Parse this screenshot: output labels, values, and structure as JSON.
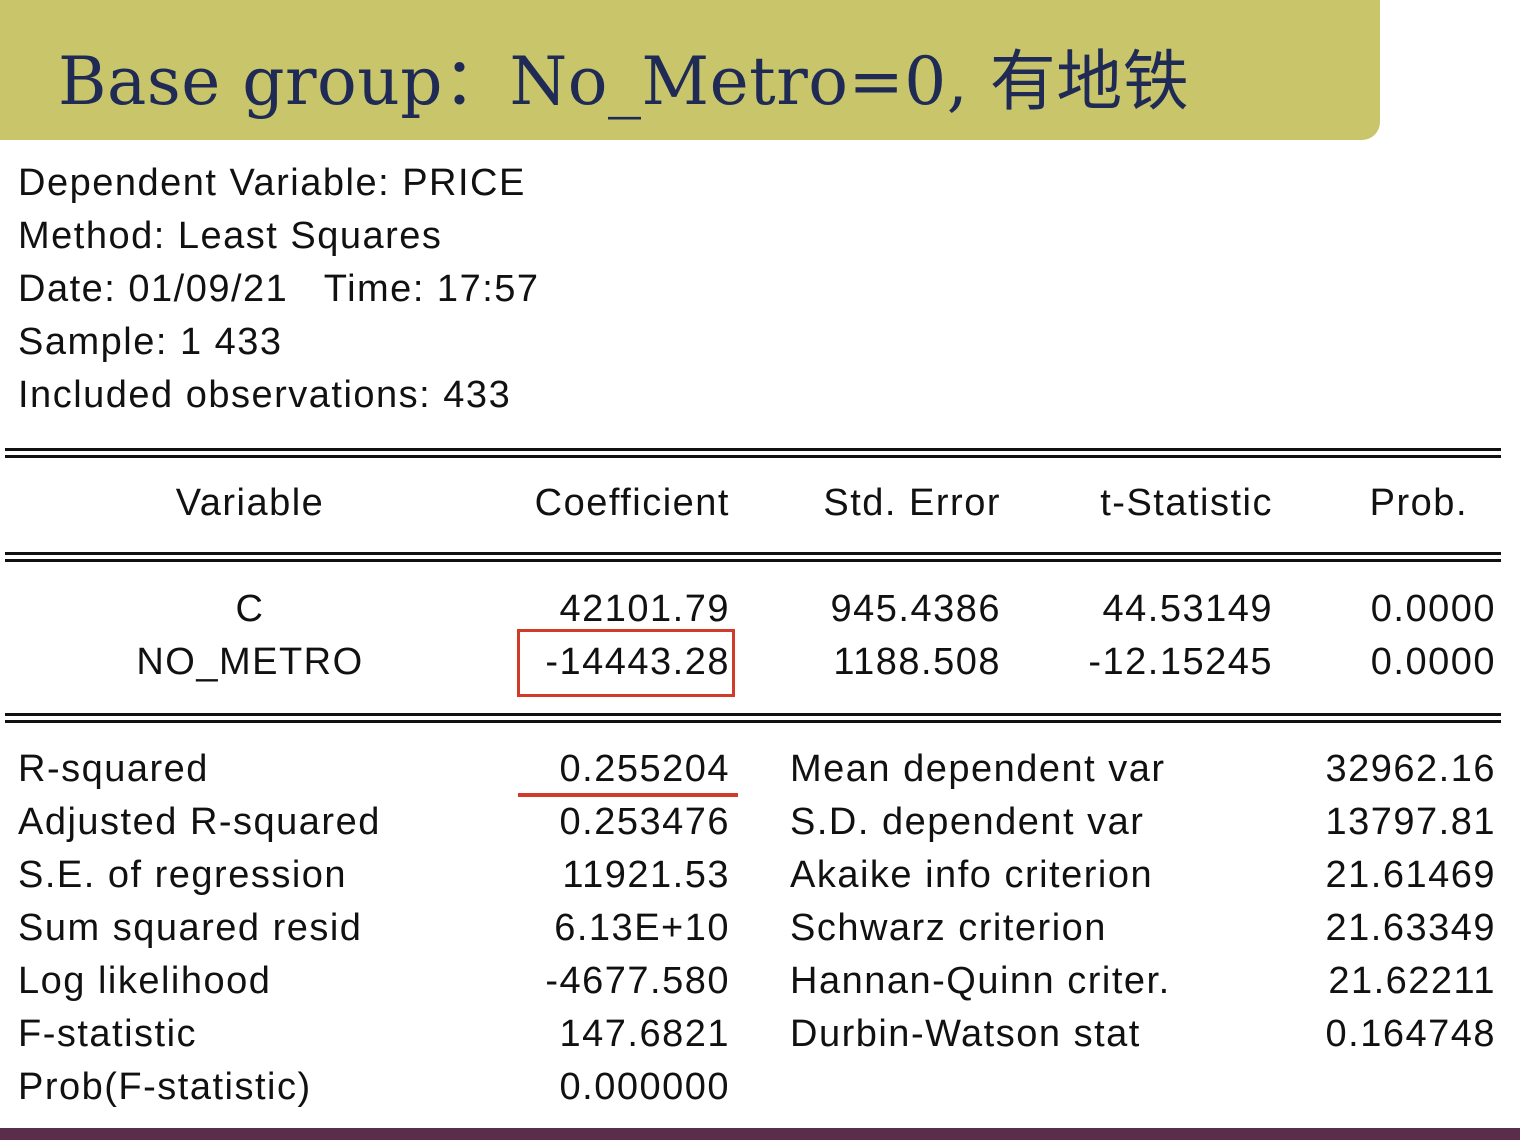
{
  "title": "Base group：No_Metro=0, 有地铁",
  "meta": {
    "dependent": "Dependent Variable: PRICE",
    "method": "Method: Least Squares",
    "date": "Date: 01/09/21   Time: 17:57",
    "sample": "Sample: 1 433",
    "observations": "Included observations: 433"
  },
  "table": {
    "headers": [
      "Variable",
      "Coefficient",
      "Std. Error",
      "t-Statistic",
      "Prob."
    ],
    "rows": [
      [
        "C",
        "42101.79",
        "945.4386",
        "44.53149",
        "0.0000"
      ],
      [
        "NO_METRO",
        "-14443.28",
        "1188.508",
        "-12.15245",
        "0.0000"
      ]
    ]
  },
  "stats": {
    "left": [
      [
        "R-squared",
        "0.255204"
      ],
      [
        "Adjusted R-squared",
        "0.253476"
      ],
      [
        "S.E. of regression",
        "11921.53"
      ],
      [
        "Sum squared resid",
        "6.13E+10"
      ],
      [
        "Log likelihood",
        "-4677.580"
      ],
      [
        "F-statistic",
        "147.6821"
      ],
      [
        "Prob(F-statistic)",
        "0.000000"
      ]
    ],
    "right": [
      [
        "Mean dependent var",
        "32962.16"
      ],
      [
        "S.D. dependent var",
        "13797.81"
      ],
      [
        "Akaike info criterion",
        "21.61469"
      ],
      [
        "Schwarz criterion",
        "21.63349"
      ],
      [
        "Hannan-Quinn criter.",
        "21.62211"
      ],
      [
        "Durbin-Watson stat",
        "0.164748"
      ]
    ]
  },
  "colors": {
    "title_bar": "#c8c56b",
    "title_text": "#1f2a55",
    "highlight": "#d23a2a",
    "bottom_bar": "#5a2d4a"
  }
}
